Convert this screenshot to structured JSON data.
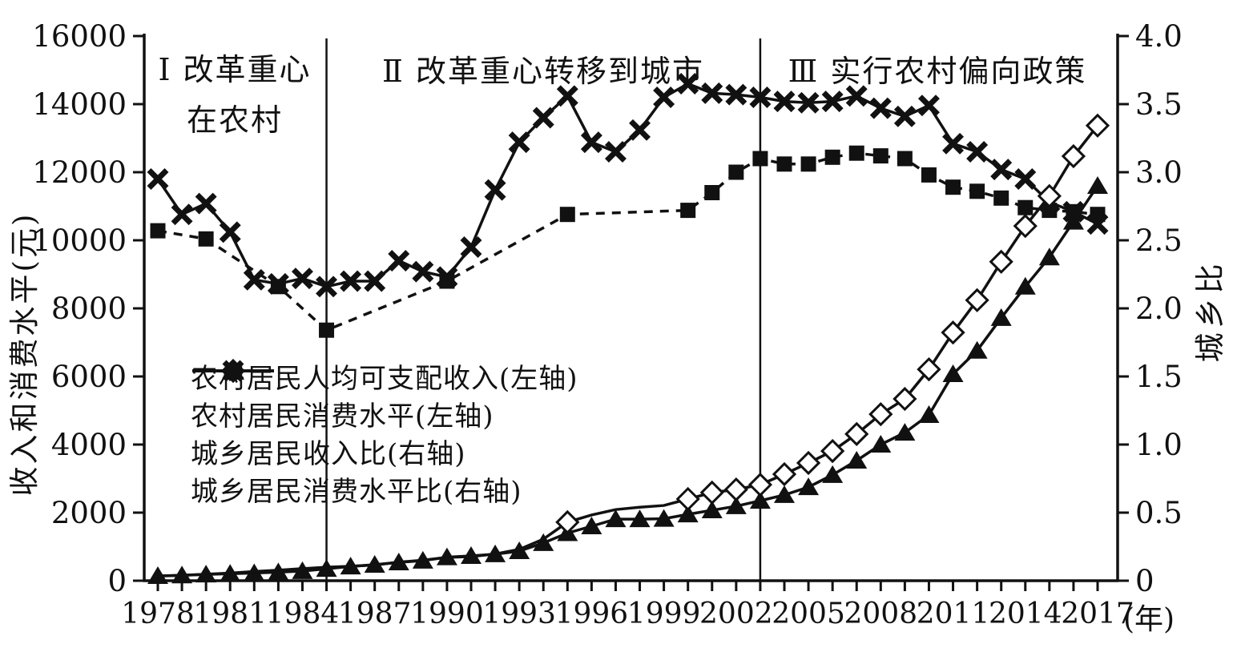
{
  "colors": {
    "ink": "#111111",
    "background": "#ffffff"
  },
  "chart_data": {
    "type": "line",
    "title": "",
    "x_axis": {
      "unit": "(年)",
      "year_start": 1978,
      "year_end": 2017,
      "tick_step_years": 1,
      "tick_labels": [
        "1978",
        "1981",
        "1984",
        "1987",
        "1990",
        "1993",
        "1996",
        "1999",
        "2002",
        "2005",
        "2008",
        "2011",
        "2014",
        "2017"
      ]
    },
    "left_axis": {
      "label": "收入和消费水平(元)",
      "min": 0,
      "max": 16000,
      "tick_step": 2000,
      "ticks": [
        "0",
        "2000",
        "4000",
        "6000",
        "8000",
        "10000",
        "12000",
        "14000",
        "16000"
      ]
    },
    "right_axis": {
      "label": "城乡比",
      "min": 0,
      "max": 4.0,
      "tick_step": 0.5,
      "ticks": [
        "0",
        "0.5",
        "1.0",
        "1.5",
        "2.0",
        "2.5",
        "3.0",
        "3.5",
        "4.0"
      ]
    },
    "separators": [
      1985,
      2003
    ],
    "periods": [
      {
        "label_line1": "Ⅰ 改革重心",
        "label_line2": "在农村",
        "start_year": 1978,
        "end_year": 1985
      },
      {
        "label_line1": "Ⅱ 改革重心转移到城市",
        "label_line2": "",
        "start_year": 1985,
        "end_year": 2003
      },
      {
        "label_line1": "Ⅲ 实行农村偏向政策",
        "label_line2": "",
        "start_year": 2003,
        "end_year": 2017
      }
    ],
    "series": [
      {
        "name": "农村居民人均可支配收入(左轴)",
        "axis": "left",
        "marker": "diamond",
        "line": "solid",
        "marker_years": [
          1995,
          2000,
          2001,
          2002,
          2003,
          2004,
          2005,
          2006,
          2007,
          2008,
          2009,
          2010,
          2011,
          2012,
          2013,
          2014,
          2015,
          2016,
          2017
        ],
        "points": [
          [
            1978,
            134
          ],
          [
            1979,
            160
          ],
          [
            1980,
            191
          ],
          [
            1981,
            223
          ],
          [
            1982,
            270
          ],
          [
            1983,
            310
          ],
          [
            1984,
            355
          ],
          [
            1985,
            398
          ],
          [
            1986,
            424
          ],
          [
            1987,
            463
          ],
          [
            1988,
            545
          ],
          [
            1989,
            602
          ],
          [
            1990,
            686
          ],
          [
            1991,
            709
          ],
          [
            1992,
            784
          ],
          [
            1993,
            922
          ],
          [
            1994,
            1221
          ],
          [
            1995,
            1720
          ],
          [
            1996,
            1930
          ],
          [
            1997,
            2090
          ],
          [
            1998,
            2160
          ],
          [
            1999,
            2210
          ],
          [
            2000,
            2400
          ],
          [
            2001,
            2590
          ],
          [
            2002,
            2680
          ],
          [
            2003,
            2820
          ],
          [
            2004,
            3130
          ],
          [
            2005,
            3460
          ],
          [
            2006,
            3810
          ],
          [
            2007,
            4310
          ],
          [
            2008,
            4890
          ],
          [
            2009,
            5340
          ],
          [
            2010,
            6210
          ],
          [
            2011,
            7290
          ],
          [
            2012,
            8240
          ],
          [
            2013,
            9370
          ],
          [
            2014,
            10420
          ],
          [
            2015,
            11300
          ],
          [
            2016,
            12470
          ],
          [
            2017,
            13370
          ]
        ]
      },
      {
        "name": "农村居民消费水平(左轴)",
        "axis": "left",
        "marker": "triangle",
        "line": "solid",
        "points": [
          [
            1978,
            140
          ],
          [
            1979,
            160
          ],
          [
            1980,
            185
          ],
          [
            1981,
            205
          ],
          [
            1982,
            225
          ],
          [
            1983,
            250
          ],
          [
            1984,
            285
          ],
          [
            1985,
            350
          ],
          [
            1986,
            420
          ],
          [
            1987,
            470
          ],
          [
            1988,
            540
          ],
          [
            1989,
            590
          ],
          [
            1990,
            690
          ],
          [
            1991,
            730
          ],
          [
            1992,
            780
          ],
          [
            1993,
            870
          ],
          [
            1994,
            1110
          ],
          [
            1995,
            1400
          ],
          [
            1996,
            1600
          ],
          [
            1997,
            1810
          ],
          [
            1998,
            1810
          ],
          [
            1999,
            1820
          ],
          [
            2000,
            1950
          ],
          [
            2001,
            2070
          ],
          [
            2002,
            2190
          ],
          [
            2003,
            2350
          ],
          [
            2004,
            2520
          ],
          [
            2005,
            2750
          ],
          [
            2006,
            3110
          ],
          [
            2007,
            3530
          ],
          [
            2008,
            4000
          ],
          [
            2009,
            4350
          ],
          [
            2010,
            4870
          ],
          [
            2011,
            6070
          ],
          [
            2012,
            6760
          ],
          [
            2013,
            7720
          ],
          [
            2014,
            8640
          ],
          [
            2015,
            9500
          ],
          [
            2016,
            10550
          ],
          [
            2017,
            11600
          ]
        ]
      },
      {
        "name": "城乡居民收入比(右轴)",
        "axis": "right",
        "marker": "square",
        "line": "dashed",
        "points": [
          [
            1978,
            2.57
          ],
          [
            1980,
            2.51
          ],
          [
            1983,
            2.16
          ],
          [
            1985,
            1.84
          ],
          [
            1990,
            2.2
          ],
          [
            1995,
            2.69
          ],
          [
            2000,
            2.72
          ],
          [
            2001,
            2.85
          ],
          [
            2002,
            3.0
          ],
          [
            2003,
            3.1
          ],
          [
            2004,
            3.06
          ],
          [
            2005,
            3.06
          ],
          [
            2006,
            3.11
          ],
          [
            2007,
            3.14
          ],
          [
            2008,
            3.12
          ],
          [
            2009,
            3.1
          ],
          [
            2010,
            2.98
          ],
          [
            2011,
            2.89
          ],
          [
            2012,
            2.86
          ],
          [
            2013,
            2.81
          ],
          [
            2014,
            2.74
          ],
          [
            2015,
            2.72
          ],
          [
            2016,
            2.71
          ],
          [
            2017,
            2.69
          ]
        ]
      },
      {
        "name": "城乡居民消费水平比(右轴)",
        "axis": "right",
        "marker": "x",
        "line": "solid",
        "points": [
          [
            1978,
            2.95
          ],
          [
            1979,
            2.69
          ],
          [
            1980,
            2.77
          ],
          [
            1981,
            2.56
          ],
          [
            1982,
            2.21
          ],
          [
            1983,
            2.18
          ],
          [
            1984,
            2.22
          ],
          [
            1985,
            2.16
          ],
          [
            1986,
            2.2
          ],
          [
            1987,
            2.2
          ],
          [
            1988,
            2.35
          ],
          [
            1989,
            2.27
          ],
          [
            1990,
            2.23
          ],
          [
            1991,
            2.45
          ],
          [
            1992,
            2.87
          ],
          [
            1993,
            3.22
          ],
          [
            1994,
            3.4
          ],
          [
            1995,
            3.56
          ],
          [
            1996,
            3.22
          ],
          [
            1997,
            3.15
          ],
          [
            1998,
            3.31
          ],
          [
            1999,
            3.55
          ],
          [
            2000,
            3.65
          ],
          [
            2001,
            3.58
          ],
          [
            2002,
            3.57
          ],
          [
            2003,
            3.55
          ],
          [
            2004,
            3.52
          ],
          [
            2005,
            3.51
          ],
          [
            2006,
            3.52
          ],
          [
            2007,
            3.56
          ],
          [
            2008,
            3.47
          ],
          [
            2009,
            3.41
          ],
          [
            2010,
            3.49
          ],
          [
            2011,
            3.21
          ],
          [
            2012,
            3.15
          ],
          [
            2013,
            3.02
          ],
          [
            2014,
            2.95
          ],
          [
            2015,
            2.78
          ],
          [
            2016,
            2.71
          ],
          [
            2017,
            2.62
          ]
        ]
      }
    ]
  }
}
